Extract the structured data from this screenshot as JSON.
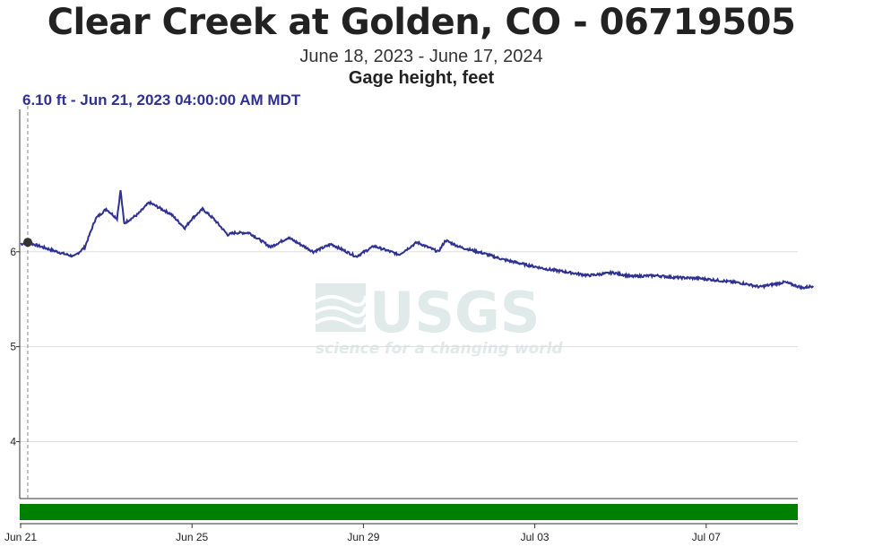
{
  "header": {
    "title": "Clear Creek at Golden, CO - 06719505",
    "date_range": "June 18, 2023 - June 17, 2024",
    "parameter": "Gage height, feet"
  },
  "tooltip": {
    "text": "6.10 ft - Jun 21, 2023 04:00:00 AM MDT"
  },
  "watermark": {
    "logo": "USGS",
    "tagline": "science for a changing world"
  },
  "colors": {
    "series": "#2e3192",
    "approval_bar": "#008000",
    "grid": "#dddddd",
    "tooltip": "#2e3192"
  },
  "chart_data": {
    "type": "line",
    "title": "Clear Creek at Golden, CO - 06719505",
    "subtitle": "June 18, 2023 - June 17, 2024",
    "ylabel": "Gage height, feet",
    "xlabel": "",
    "x_ticks": [
      "Jun 21",
      "Jun 25",
      "Jun 29",
      "Jul 03",
      "Jul 07"
    ],
    "y_ticks": [
      "4",
      "5",
      "6"
    ],
    "ylim": [
      3.4,
      7.5
    ],
    "xlim_days_from_jun21": [
      0,
      18.2
    ],
    "grid": true,
    "highlight": {
      "date": "Jun 21, 2023 04:00",
      "value": 6.1
    },
    "series": [
      {
        "points": [
          [
            "Jun 21 00:00",
            6.08
          ],
          [
            "Jun 21 04:00",
            6.1
          ],
          [
            "Jun 21 12:00",
            6.05
          ],
          [
            "Jun 22 00:00",
            5.98
          ],
          [
            "Jun 22 06:00",
            5.95
          ],
          [
            "Jun 22 12:00",
            6.05
          ],
          [
            "Jun 22 18:00",
            6.35
          ],
          [
            "Jun 23 00:00",
            6.45
          ],
          [
            "Jun 23 06:00",
            6.35
          ],
          [
            "Jun 23 08:00",
            6.65
          ],
          [
            "Jun 23 10:00",
            6.3
          ],
          [
            "Jun 23 18:00",
            6.4
          ],
          [
            "Jun 24 00:00",
            6.52
          ],
          [
            "Jun 24 12:00",
            6.4
          ],
          [
            "Jun 24 20:00",
            6.25
          ],
          [
            "Jun 25 00:00",
            6.35
          ],
          [
            "Jun 25 06:00",
            6.45
          ],
          [
            "Jun 25 12:00",
            6.35
          ],
          [
            "Jun 25 20:00",
            6.18
          ],
          [
            "Jun 26 00:00",
            6.2
          ],
          [
            "Jun 26 08:00",
            6.2
          ],
          [
            "Jun 26 20:00",
            6.05
          ],
          [
            "Jun 27 06:00",
            6.15
          ],
          [
            "Jun 27 20:00",
            6.0
          ],
          [
            "Jun 28 06:00",
            6.08
          ],
          [
            "Jun 28 20:00",
            5.95
          ],
          [
            "Jun 29 06:00",
            6.06
          ],
          [
            "Jun 29 20:00",
            5.97
          ],
          [
            "Jun 30 06:00",
            6.1
          ],
          [
            "Jun 30 18:00",
            6.0
          ],
          [
            "Jun 30 22:00",
            6.12
          ],
          [
            "Jul 01 06:00",
            6.05
          ],
          [
            "Jul 01 20:00",
            5.98
          ],
          [
            "Jul 02 06:00",
            5.92
          ],
          [
            "Jul 02 20:00",
            5.86
          ],
          [
            "Jul 03 06:00",
            5.82
          ],
          [
            "Jul 03 20:00",
            5.78
          ],
          [
            "Jul 04 06:00",
            5.75
          ],
          [
            "Jul 04 20:00",
            5.78
          ],
          [
            "Jul 05 06:00",
            5.74
          ],
          [
            "Jul 05 20:00",
            5.75
          ],
          [
            "Jul 06 06:00",
            5.73
          ],
          [
            "Jul 06 20:00",
            5.72
          ],
          [
            "Jul 07 06:00",
            5.7
          ],
          [
            "Jul 07 20:00",
            5.67
          ],
          [
            "Jul 08 06:00",
            5.63
          ],
          [
            "Jul 08 20:00",
            5.68
          ],
          [
            "Jul 09 06:00",
            5.62
          ],
          [
            "Jul 09 12:00",
            5.64
          ]
        ]
      }
    ]
  }
}
